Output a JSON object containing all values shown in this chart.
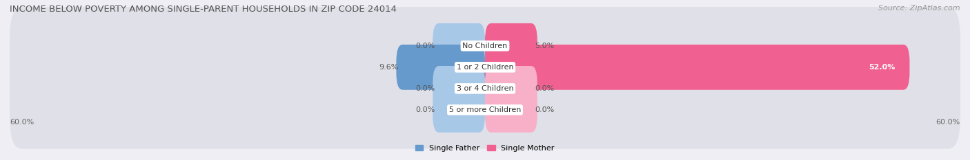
{
  "title": "INCOME BELOW POVERTY AMONG SINGLE-PARENT HOUSEHOLDS IN ZIP CODE 24014",
  "source": "Source: ZipAtlas.com",
  "categories": [
    "No Children",
    "1 or 2 Children",
    "3 or 4 Children",
    "5 or more Children"
  ],
  "single_father": [
    0.0,
    9.6,
    0.0,
    0.0
  ],
  "single_mother": [
    5.0,
    52.0,
    0.0,
    0.0
  ],
  "father_color_light": "#a8c8e8",
  "father_color_dark": "#6699cc",
  "mother_color_light": "#f8b0c8",
  "mother_color_dark": "#f06090",
  "bg_color": "#eeeef4",
  "bar_bg_color": "#e0e0e8",
  "max_val": 60.0,
  "stub_size": 5.0,
  "legend_father": "Single Father",
  "legend_mother": "Single Mother",
  "title_fontsize": 9.5,
  "source_fontsize": 8,
  "label_fontsize": 8,
  "cat_fontsize": 8
}
